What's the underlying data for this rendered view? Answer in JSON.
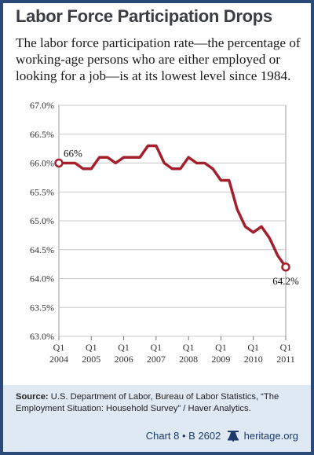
{
  "title": "Labor Force Participation Drops",
  "subtitle": "The labor force participation rate—the percentage of working-age persons who are either employed or looking for a job—is at its lowest level since 1984.",
  "source": {
    "prefix": "Source:",
    "text": "U.S. Department of Labor, Bureau of Labor Statistics, “The Employment Situation: Household Survey” / Haver Analytics."
  },
  "footer": {
    "chart_ref": "Chart 8 • B 2602",
    "site": "heritage.org",
    "logo_icon": "liberty-bell-icon"
  },
  "colors": {
    "line": "#a3202c",
    "frame": "#2c4a78",
    "background_band": "#dfe9f4",
    "grid": "#c8c8c8"
  },
  "chart_data": {
    "type": "line",
    "grid": true,
    "ylim": [
      63.0,
      67.0
    ],
    "yticks": [
      "63.0%",
      "63.5%",
      "64.0%",
      "64.5%",
      "65.0%",
      "65.5%",
      "66.0%",
      "66.5%",
      "67.0%"
    ],
    "xticks": [
      {
        "quarter": "Q1",
        "year": "2004"
      },
      {
        "quarter": "Q1",
        "year": "2005"
      },
      {
        "quarter": "Q1",
        "year": "2006"
      },
      {
        "quarter": "Q1",
        "year": "2007"
      },
      {
        "quarter": "Q1",
        "year": "2008"
      },
      {
        "quarter": "Q1",
        "year": "2009"
      },
      {
        "quarter": "Q1",
        "year": "2010"
      },
      {
        "quarter": "Q1",
        "year": "2011"
      }
    ],
    "x": [
      "2004 Q1",
      "2004 Q2",
      "2004 Q3",
      "2004 Q4",
      "2005 Q1",
      "2005 Q2",
      "2005 Q3",
      "2005 Q4",
      "2006 Q1",
      "2006 Q2",
      "2006 Q3",
      "2006 Q4",
      "2007 Q1",
      "2007 Q2",
      "2007 Q3",
      "2007 Q4",
      "2008 Q1",
      "2008 Q2",
      "2008 Q3",
      "2008 Q4",
      "2009 Q1",
      "2009 Q2",
      "2009 Q3",
      "2009 Q4",
      "2010 Q1",
      "2010 Q2",
      "2010 Q3",
      "2010 Q4",
      "2011 Q1"
    ],
    "values": [
      66.0,
      66.0,
      66.0,
      65.9,
      65.9,
      66.1,
      66.1,
      66.0,
      66.1,
      66.1,
      66.1,
      66.3,
      66.3,
      66.0,
      65.9,
      65.9,
      66.1,
      66.0,
      66.0,
      65.9,
      65.7,
      65.7,
      65.2,
      64.9,
      64.8,
      64.9,
      64.7,
      64.4,
      64.2
    ],
    "annotations": [
      {
        "label": "66%",
        "index": 0
      },
      {
        "label": "64.2%",
        "index": 28
      }
    ]
  }
}
